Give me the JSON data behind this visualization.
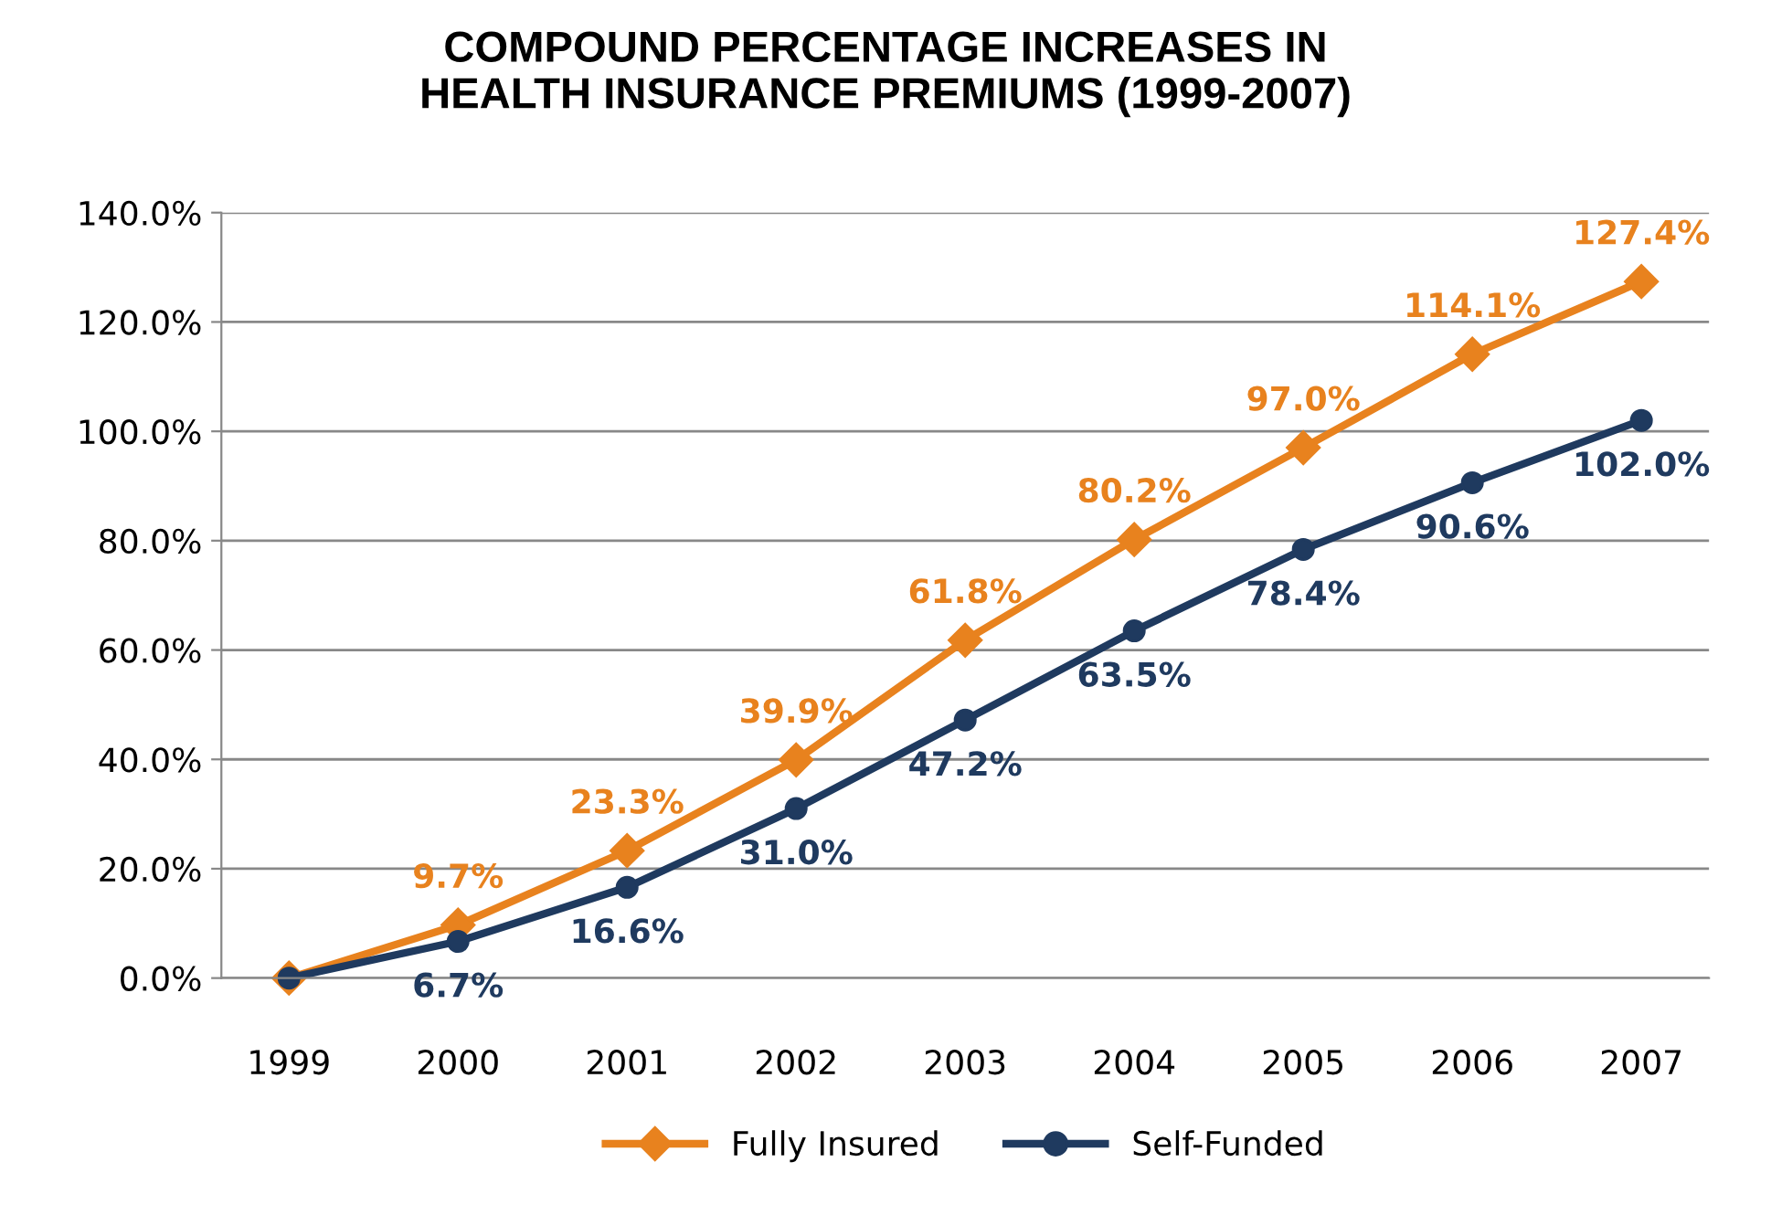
{
  "chart_data": {
    "type": "line",
    "title": "COMPOUND PERCENTAGE INCREASES IN\nHEALTH INSURANCE PREMIUMS (1999-2007)",
    "categories": [
      "1999",
      "2000",
      "2001",
      "2002",
      "2003",
      "2004",
      "2005",
      "2006",
      "2007"
    ],
    "series": [
      {
        "name": "Fully Insured",
        "color": "#e8821e",
        "marker": "diamond",
        "values": [
          0,
          9.7,
          23.3,
          39.9,
          61.8,
          80.2,
          97.0,
          114.1,
          127.4
        ],
        "value_labels": [
          null,
          "9.7%",
          "23.3%",
          "39.9%",
          "61.8%",
          "80.2%",
          "97.0%",
          "114.1%",
          "127.4%"
        ]
      },
      {
        "name": "Self-Funded",
        "color": "#1f3a5f",
        "marker": "circle",
        "values": [
          0,
          6.7,
          16.6,
          31.0,
          47.2,
          63.5,
          78.4,
          90.6,
          102.0
        ],
        "value_labels": [
          null,
          "6.7%",
          "16.6%",
          "31.0%",
          "47.2%",
          "63.5%",
          "78.4%",
          "90.6%",
          "102.0%"
        ]
      }
    ],
    "ylim": [
      0,
      140
    ],
    "yticks": [
      {
        "value": 0,
        "label": "0.0%"
      },
      {
        "value": 20,
        "label": "20.0%"
      },
      {
        "value": 40,
        "label": "40.0%"
      },
      {
        "value": 60,
        "label": "60.0%"
      },
      {
        "value": 80,
        "label": "80.0%"
      },
      {
        "value": 100,
        "label": "100.0%"
      },
      {
        "value": 120,
        "label": "120.0%"
      },
      {
        "value": 140,
        "label": "140.0%"
      }
    ],
    "grid": "y",
    "legend": "bottom",
    "line_style": "solid"
  }
}
